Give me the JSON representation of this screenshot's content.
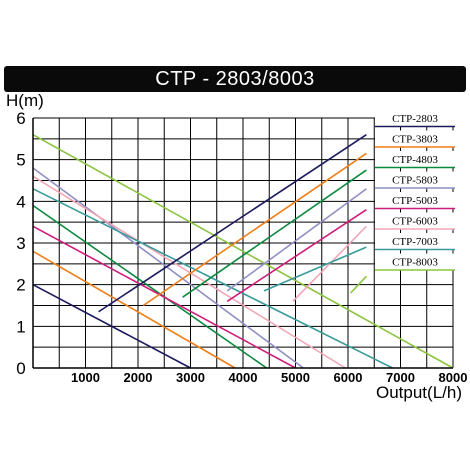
{
  "chart_data": {
    "type": "line",
    "title": "CTP - 2803/8003",
    "xlabel": "Output(L/h)",
    "ylabel": "H(m)",
    "xlim": [
      0,
      8000
    ],
    "ylim": [
      0,
      6
    ],
    "grid": true,
    "x_ticks": [
      "1000",
      "2000",
      "3000",
      "4000",
      "5000",
      "6000",
      "7000",
      "8000"
    ],
    "y_ticks": [
      "0",
      "1",
      "2",
      "3",
      "4",
      "5",
      "6"
    ],
    "legend_position": "right",
    "series": [
      {
        "name": "CTP-2803",
        "color": "#1c1a5e",
        "curve": [
          [
            0,
            2.0
          ],
          [
            3000,
            0.0
          ]
        ],
        "power": [
          [
            1250,
            1.35
          ],
          [
            6350,
            5.6
          ]
        ]
      },
      {
        "name": "CTP-3803",
        "color": "#ef7f1a",
        "curve": [
          [
            0,
            2.8
          ],
          [
            3850,
            0.0
          ]
        ],
        "power": [
          [
            2100,
            1.5
          ],
          [
            6350,
            5.15
          ]
        ]
      },
      {
        "name": "CTP-4803",
        "color": "#0b8a3e",
        "curve": [
          [
            0,
            3.9
          ],
          [
            4450,
            0.0
          ]
        ],
        "power": [
          [
            2850,
            1.7
          ],
          [
            6350,
            4.75
          ]
        ]
      },
      {
        "name": "CTP-5803",
        "color": "#8f8fc6",
        "curve": [
          [
            0,
            4.8
          ],
          [
            5150,
            0.0
          ]
        ],
        "power": [
          [
            3700,
            1.85
          ],
          [
            6350,
            4.3
          ]
        ]
      },
      {
        "name": "CTP-5003",
        "color": "#cf1c7b",
        "curve": [
          [
            0,
            3.4
          ],
          [
            5000,
            0.0
          ]
        ],
        "power": [
          [
            3700,
            1.6
          ],
          [
            6350,
            3.8
          ]
        ]
      },
      {
        "name": "CTP-6003",
        "color": "#f2a7b5",
        "curve": [
          [
            0,
            4.6
          ],
          [
            5950,
            0.0
          ]
        ],
        "power": [
          [
            4950,
            1.6
          ],
          [
            6350,
            3.4
          ]
        ]
      },
      {
        "name": "CTP-7003",
        "color": "#3a9a9a",
        "curve": [
          [
            0,
            4.3
          ],
          [
            6850,
            0.0
          ]
        ],
        "power": [
          [
            4400,
            1.85
          ],
          [
            6350,
            2.9
          ]
        ]
      },
      {
        "name": "CTP-8003",
        "color": "#8bc53f",
        "curve": [
          [
            0,
            5.6
          ],
          [
            8000,
            0.0
          ]
        ],
        "power": [
          [
            6050,
            1.8
          ],
          [
            6350,
            2.2
          ]
        ]
      }
    ]
  }
}
